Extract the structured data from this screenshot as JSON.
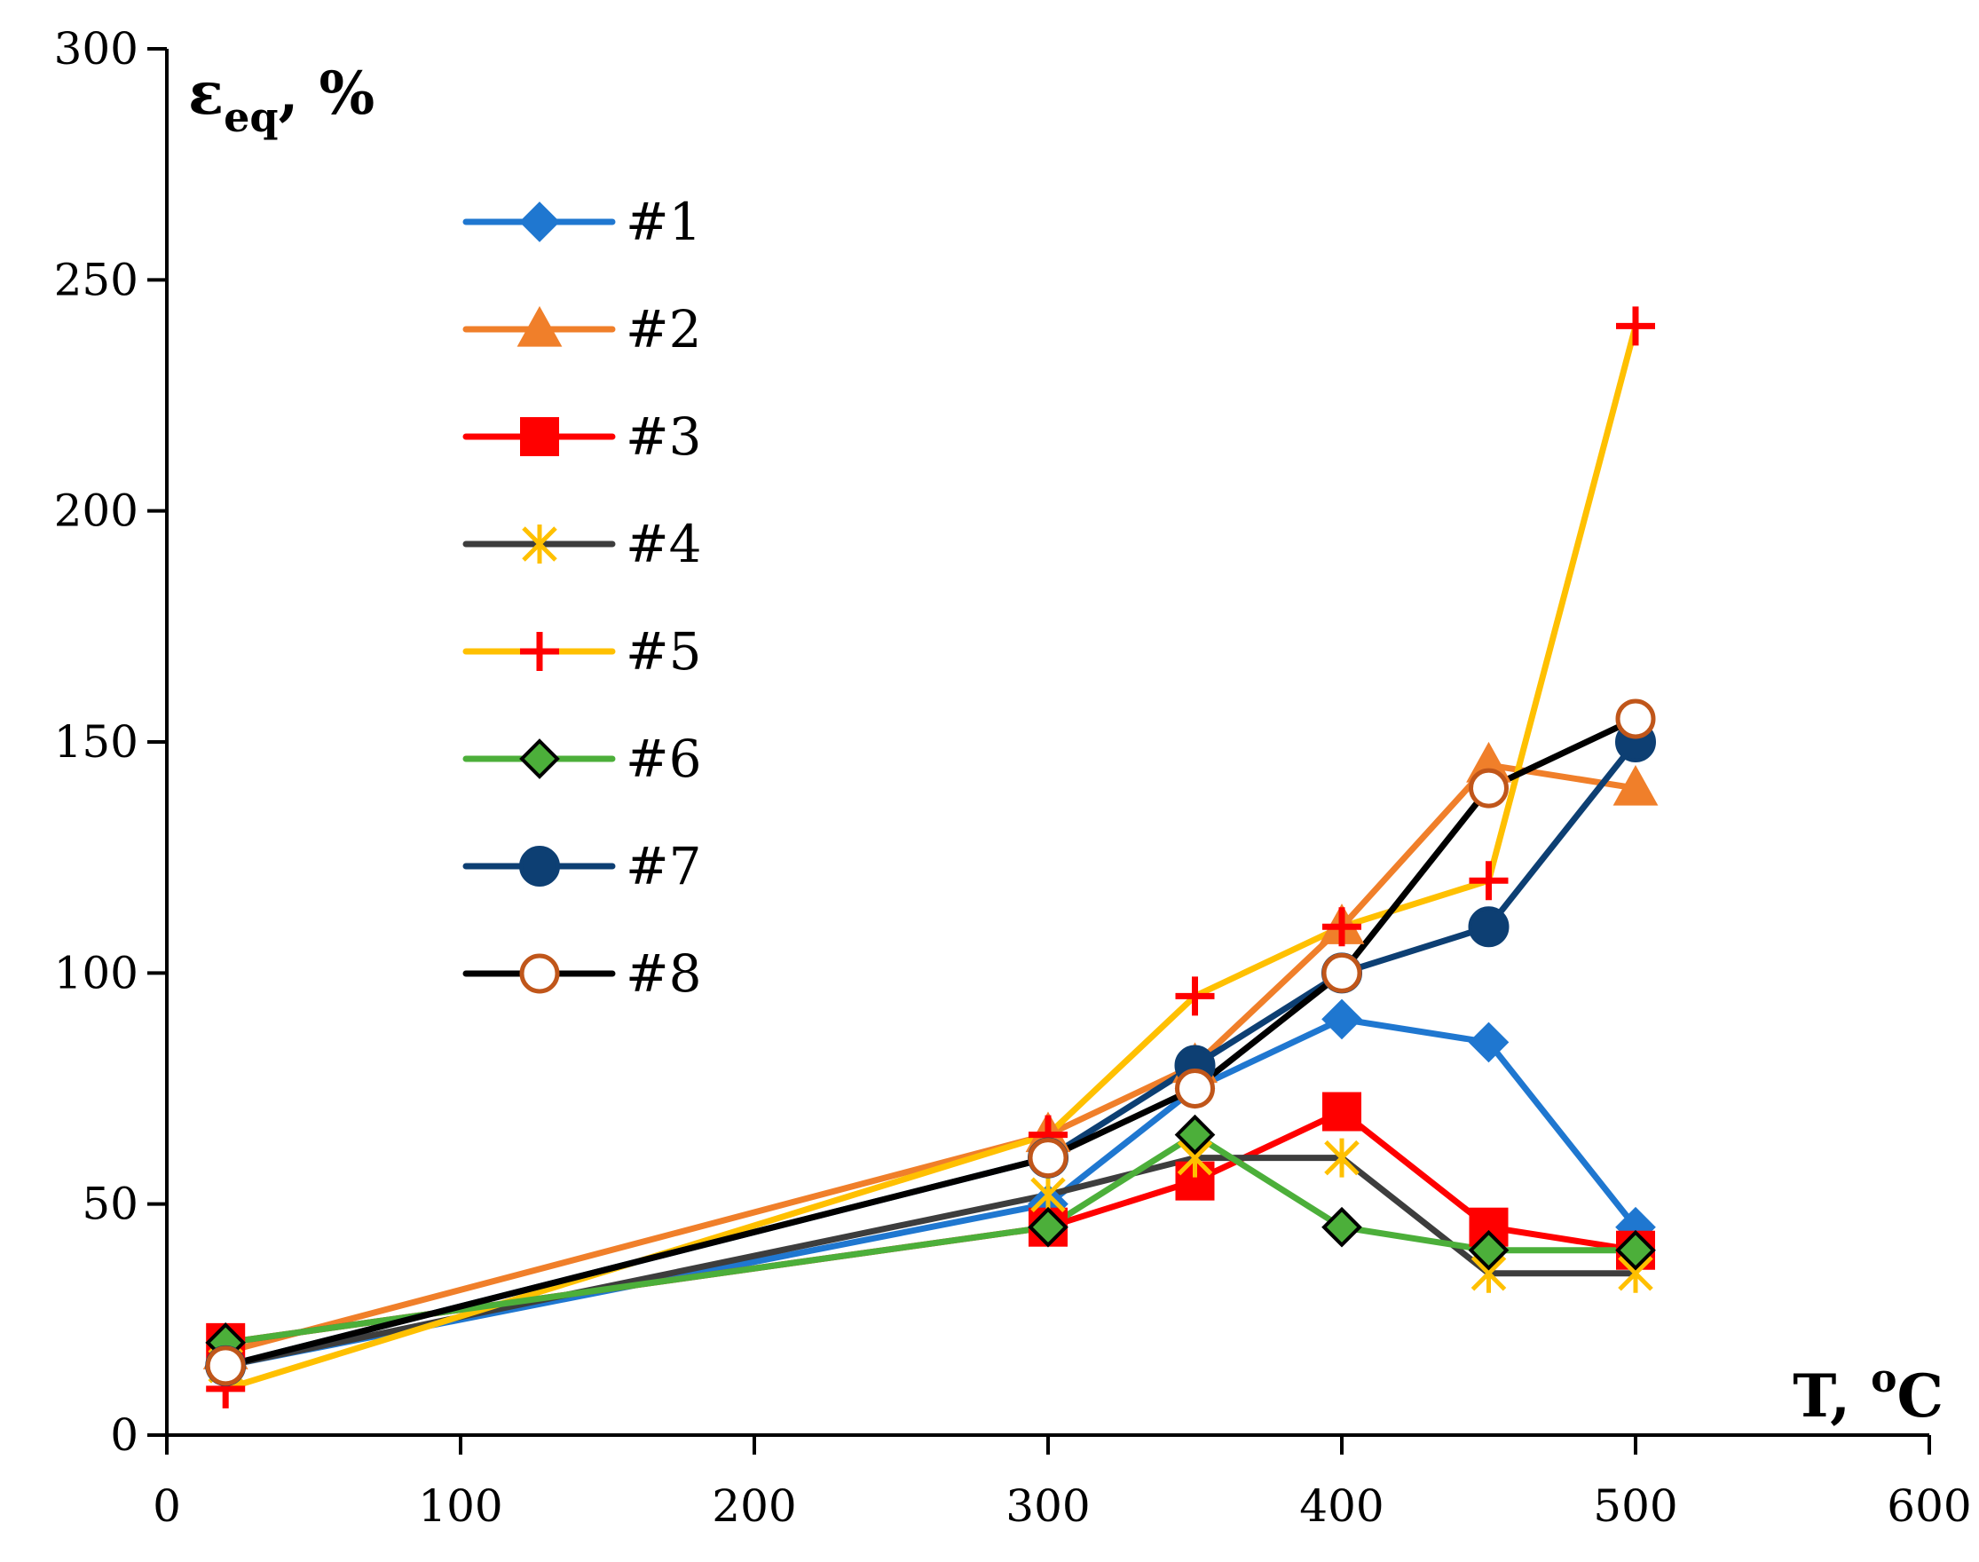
{
  "chart_data": {
    "type": "line",
    "title": "",
    "xlabel": "T, °C",
    "ylabel": "εeq, %",
    "ylabel_main": "ε",
    "ylabel_sub": "eq",
    "ylabel_suffix": ", %",
    "xlabel_main": "T, ",
    "xlabel_sup": "o",
    "xlabel_unit": "C",
    "xlim": [
      0,
      600
    ],
    "ylim": [
      0,
      300
    ],
    "xticks": [
      0,
      100,
      200,
      300,
      400,
      500,
      600
    ],
    "yticks": [
      0,
      50,
      100,
      150,
      200,
      250,
      300
    ],
    "grid": false,
    "legend_position": "upper-left",
    "series": [
      {
        "name": "#1",
        "color": "#1f77d0",
        "marker": "diamond",
        "marker_fill": "#1f77d0",
        "marker_stroke": "#1f77d0",
        "points": [
          [
            20,
            15
          ],
          [
            300,
            50
          ],
          [
            350,
            75
          ],
          [
            400,
            90
          ],
          [
            450,
            85
          ],
          [
            500,
            45
          ]
        ]
      },
      {
        "name": "#2",
        "color": "#f07f2a",
        "marker": "triangle",
        "marker_fill": "#f07f2a",
        "marker_stroke": "#f07f2a",
        "points": [
          [
            20,
            18
          ],
          [
            300,
            65
          ],
          [
            350,
            80
          ],
          [
            400,
            110
          ],
          [
            450,
            145
          ],
          [
            500,
            140
          ]
        ]
      },
      {
        "name": "#3",
        "color": "#ff0000",
        "marker": "square",
        "marker_fill": "#ff0000",
        "marker_stroke": "#ff0000",
        "points": [
          [
            20,
            20
          ],
          [
            300,
            45
          ],
          [
            350,
            55
          ],
          [
            400,
            70
          ],
          [
            450,
            45
          ],
          [
            500,
            40
          ]
        ]
      },
      {
        "name": "#4",
        "color": "#3d3d3d",
        "marker": "asterisk",
        "marker_fill": "none",
        "marker_stroke": "#ffc000",
        "points": [
          [
            20,
            15
          ],
          [
            300,
            52
          ],
          [
            350,
            60
          ],
          [
            400,
            60
          ],
          [
            450,
            35
          ],
          [
            500,
            35
          ]
        ]
      },
      {
        "name": "#5",
        "color": "#ffc000",
        "marker": "plus",
        "marker_fill": "none",
        "marker_stroke": "#ff0000",
        "points": [
          [
            20,
            10
          ],
          [
            300,
            65
          ],
          [
            350,
            95
          ],
          [
            400,
            110
          ],
          [
            450,
            120
          ],
          [
            500,
            240
          ]
        ]
      },
      {
        "name": "#6",
        "color": "#4caf3a",
        "marker": "diamond",
        "marker_fill": "#4caf3a",
        "marker_stroke": "#000000",
        "points": [
          [
            20,
            20
          ],
          [
            300,
            45
          ],
          [
            350,
            65
          ],
          [
            400,
            45
          ],
          [
            450,
            40
          ],
          [
            500,
            40
          ]
        ]
      },
      {
        "name": "#7",
        "color": "#0d3f73",
        "marker": "circle",
        "marker_fill": "#0d3f73",
        "marker_stroke": "#0d3f73",
        "points": [
          [
            20,
            15
          ],
          [
            300,
            60
          ],
          [
            350,
            80
          ],
          [
            400,
            100
          ],
          [
            450,
            110
          ],
          [
            500,
            150
          ]
        ]
      },
      {
        "name": "#8",
        "color": "#000000",
        "marker": "circle-open",
        "marker_fill": "#ffffff",
        "marker_stroke": "#c0561a",
        "points": [
          [
            20,
            15
          ],
          [
            300,
            60
          ],
          [
            350,
            75
          ],
          [
            400,
            100
          ],
          [
            450,
            140
          ],
          [
            500,
            155
          ]
        ]
      }
    ]
  }
}
